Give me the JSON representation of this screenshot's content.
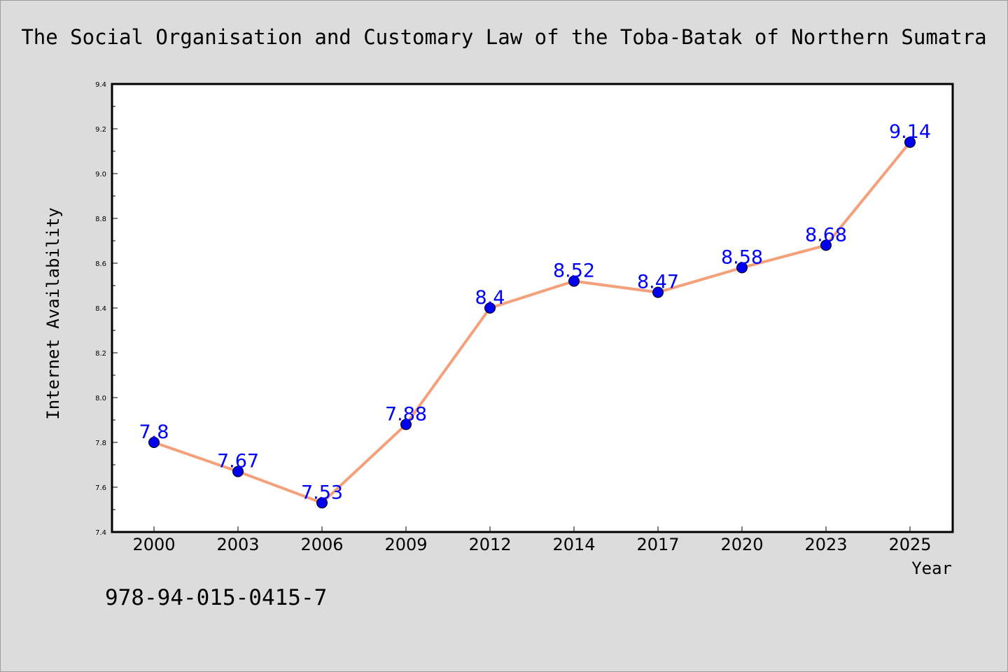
{
  "chart_data": {
    "type": "line",
    "title": "The Social Organisation and Customary Law of the Toba-Batak of Northern Sumatra",
    "xlabel": "Year",
    "ylabel": "Internet Availability",
    "categories": [
      "2000",
      "2003",
      "2006",
      "2009",
      "2012",
      "2014",
      "2017",
      "2020",
      "2023",
      "2025"
    ],
    "series": [
      {
        "values": [
          7.8,
          7.67,
          7.53,
          7.88,
          8.4,
          8.52,
          8.47,
          8.58,
          8.68,
          9.14
        ],
        "labels": [
          "7.8",
          "7.67",
          "7.53",
          "7.88",
          "8.4",
          "8.52",
          "8.47",
          "8.58",
          "8.68",
          "9.14"
        ],
        "line_color": "#f4a07a",
        "marker_color": "#0000ee",
        "label_color": "#0000ff"
      }
    ],
    "ylim": [
      7.4,
      9.4
    ],
    "yticks": [
      "7.4",
      "7.6",
      "7.8",
      "8.0",
      "8.2",
      "8.4",
      "8.6",
      "8.8",
      "9.0",
      "9.2",
      "9.4"
    ],
    "grid": false,
    "legend": "none",
    "annotation": "978-94-015-0415-7",
    "background_color": "#dcdcdc",
    "plot_background_color": "#ffffff"
  }
}
